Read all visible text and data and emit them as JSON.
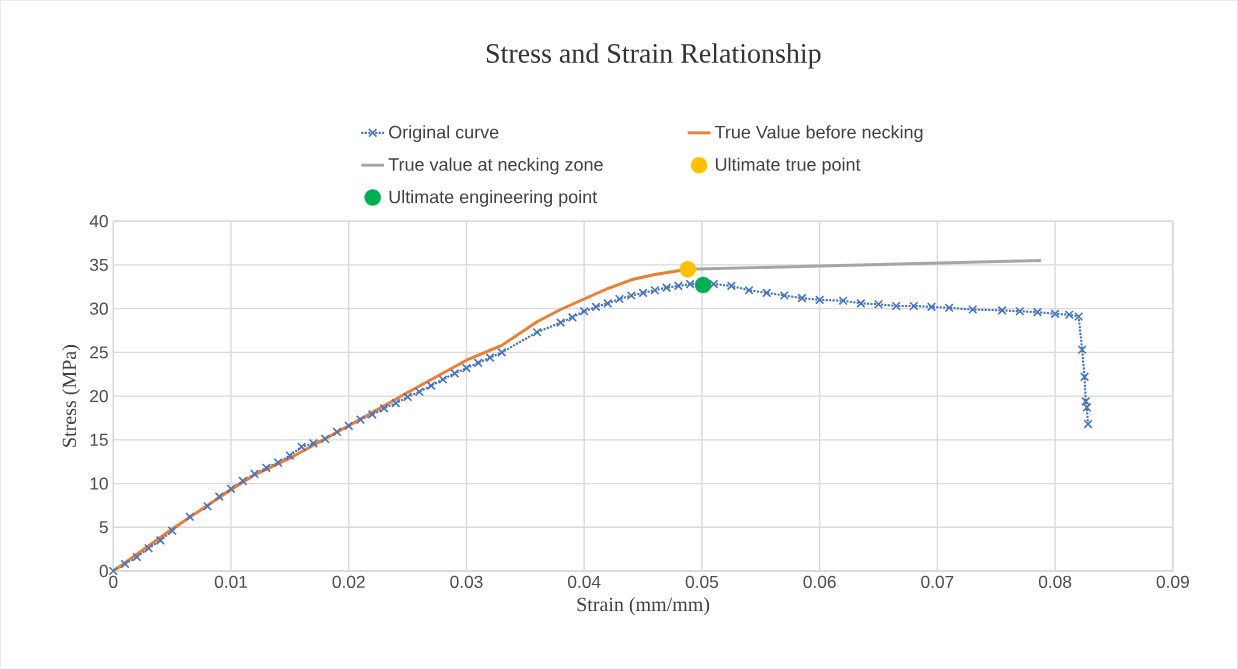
{
  "chart_data": {
    "type": "line",
    "title": "Stress and Strain Relationship",
    "xlabel": "Strain (mm/mm)",
    "ylabel": "Stress (MPa)",
    "xlim": [
      0,
      0.09
    ],
    "xticks": [
      0,
      0.01,
      0.02,
      0.03,
      0.04,
      0.05,
      0.06,
      0.07,
      0.08,
      0.09
    ],
    "ylim": [
      0,
      40
    ],
    "yticks": [
      0,
      5,
      10,
      15,
      20,
      25,
      30,
      35,
      40
    ],
    "grid": true,
    "legend": "top",
    "series": [
      {
        "name": "Original curve",
        "color": "#4472c4",
        "marker": "cross",
        "line_style": "dotted",
        "x": [
          0,
          0.001,
          0.002,
          0.003,
          0.004,
          0.005,
          0.0065,
          0.008,
          0.009,
          0.01,
          0.011,
          0.012,
          0.013,
          0.014,
          0.015,
          0.016,
          0.017,
          0.018,
          0.019,
          0.02,
          0.021,
          0.022,
          0.023,
          0.024,
          0.025,
          0.026,
          0.027,
          0.028,
          0.029,
          0.03,
          0.031,
          0.032,
          0.033,
          0.036,
          0.038,
          0.039,
          0.04,
          0.041,
          0.042,
          0.043,
          0.044,
          0.045,
          0.046,
          0.047,
          0.048,
          0.049,
          0.051,
          0.0525,
          0.054,
          0.0555,
          0.057,
          0.0585,
          0.06,
          0.062,
          0.0635,
          0.065,
          0.0665,
          0.068,
          0.0695,
          0.071,
          0.073,
          0.0755,
          0.077,
          0.0785,
          0.08,
          0.0812,
          0.082,
          0.0823,
          0.0825,
          0.0826,
          0.0827,
          0.0828
        ],
        "values": [
          0,
          0.8,
          1.6,
          2.6,
          3.5,
          4.6,
          6.2,
          7.4,
          8.5,
          9.4,
          10.3,
          11.1,
          11.8,
          12.4,
          13.2,
          14.2,
          14.6,
          15.1,
          15.9,
          16.6,
          17.3,
          17.9,
          18.6,
          19.2,
          19.9,
          20.5,
          21.2,
          21.9,
          22.6,
          23.2,
          23.8,
          24.4,
          25.0,
          27.3,
          28.4,
          29.0,
          29.7,
          30.2,
          30.6,
          31.1,
          31.5,
          31.8,
          32.1,
          32.4,
          32.6,
          32.8,
          32.8,
          32.6,
          32.1,
          31.8,
          31.5,
          31.2,
          31.0,
          30.9,
          30.6,
          30.5,
          30.3,
          30.3,
          30.2,
          30.1,
          29.9,
          29.8,
          29.7,
          29.6,
          29.4,
          29.3,
          29.1,
          25.3,
          22.2,
          19.4,
          18.7,
          16.8
        ]
      },
      {
        "name": "True Value before necking",
        "color": "#ed7d31",
        "marker": "none",
        "line_style": "solid",
        "x": [
          0,
          0.005,
          0.01,
          0.012,
          0.015,
          0.02,
          0.025,
          0.03,
          0.033,
          0.036,
          0.038,
          0.04,
          0.042,
          0.044,
          0.046,
          0.0488
        ],
        "values": [
          0,
          4.8,
          9.3,
          11.0,
          12.9,
          16.6,
          20.4,
          24.1,
          25.8,
          28.5,
          29.9,
          31.1,
          32.3,
          33.3,
          33.9,
          34.5
        ]
      },
      {
        "name": "True value at necking zone",
        "color": "#a5a5a5",
        "marker": "none",
        "line_style": "solid",
        "x": [
          0.0488,
          0.0788
        ],
        "values": [
          34.5,
          35.5
        ]
      },
      {
        "name": "Ultimate true point",
        "type": "scatter",
        "color": "#ffc000",
        "marker": "circle",
        "x": [
          0.0488
        ],
        "values": [
          34.5
        ]
      },
      {
        "name": "Ultimate engineering point",
        "type": "scatter",
        "color": "#00b050",
        "marker": "circle",
        "x": [
          0.0501
        ],
        "values": [
          32.7
        ]
      }
    ]
  }
}
